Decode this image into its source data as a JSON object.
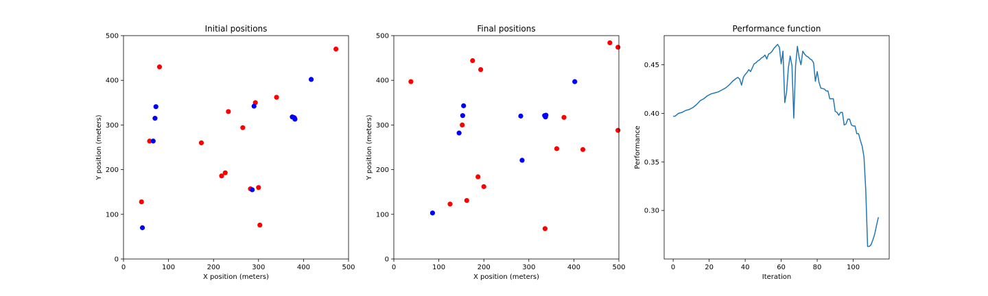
{
  "chart_data": [
    {
      "type": "scatter",
      "title": "Initial positions",
      "xlabel": "X position (meters)",
      "ylabel": "Y position (meters)",
      "xlim": [
        0,
        500
      ],
      "ylim": [
        0,
        500
      ],
      "xticks": [
        0,
        100,
        200,
        300,
        400,
        500
      ],
      "yticks": [
        0,
        100,
        200,
        300,
        400,
        500
      ],
      "grid": false,
      "series": [
        {
          "color": "#ff0000",
          "points": [
            [
              472,
              470
            ],
            [
              80,
              430
            ],
            [
              340,
              362
            ],
            [
              293,
              350
            ],
            [
              233,
              330
            ],
            [
              375,
              318
            ],
            [
              380,
              316
            ],
            [
              265,
              294
            ],
            [
              58,
              264
            ],
            [
              173,
              260
            ],
            [
              226,
              193
            ],
            [
              218,
              186
            ],
            [
              282,
              157
            ],
            [
              300,
              160
            ],
            [
              40,
              128
            ],
            [
              303,
              76
            ]
          ]
        },
        {
          "color": "#0000ff",
          "points": [
            [
              417,
              402
            ],
            [
              72,
              341
            ],
            [
              290,
              342
            ],
            [
              70,
              315
            ],
            [
              378,
              317
            ],
            [
              375,
              318
            ],
            [
              381,
              313
            ],
            [
              66,
              264
            ],
            [
              286,
              155
            ],
            [
              42,
              70
            ]
          ]
        }
      ]
    },
    {
      "type": "scatter",
      "title": "Final positions",
      "xlabel": "X position (meters)",
      "ylabel": "Y position (meters)",
      "xlim": [
        0,
        500
      ],
      "ylim": [
        0,
        500
      ],
      "xticks": [
        0,
        100,
        200,
        300,
        400,
        500
      ],
      "yticks": [
        0,
        100,
        200,
        300,
        400,
        500
      ],
      "grid": false,
      "series": [
        {
          "color": "#ff0000",
          "points": [
            [
              480,
              484
            ],
            [
              498,
              474
            ],
            [
              175,
              444
            ],
            [
              193,
              424
            ],
            [
              38,
              397
            ],
            [
              378,
              317
            ],
            [
              152,
              300
            ],
            [
              498,
              288
            ],
            [
              362,
              247
            ],
            [
              420,
              245
            ],
            [
              187,
              184
            ],
            [
              200,
              162
            ],
            [
              162,
              131
            ],
            [
              125,
              123
            ],
            [
              336,
              68
            ]
          ]
        },
        {
          "color": "#0000ff",
          "points": [
            [
              402,
              397
            ],
            [
              155,
              343
            ],
            [
              153,
              321
            ],
            [
              282,
              320
            ],
            [
              335,
              321
            ],
            [
              338,
              322
            ],
            [
              337,
              318
            ],
            [
              145,
              282
            ],
            [
              285,
              221
            ],
            [
              86,
              103
            ]
          ]
        }
      ]
    },
    {
      "type": "line",
      "title": "Performance function",
      "xlabel": "Iteration",
      "ylabel": "Performance",
      "xlim": [
        -5,
        120
      ],
      "ylim": [
        0.25,
        0.48
      ],
      "xticks": [
        0,
        20,
        40,
        60,
        80,
        100
      ],
      "yticks": [
        0.3,
        0.35,
        0.4,
        0.45
      ],
      "grid": false,
      "series": [
        {
          "color": "#1f77b4",
          "points": [
            [
              0,
              0.397
            ],
            [
              1,
              0.397
            ],
            [
              3,
              0.4
            ],
            [
              5,
              0.401
            ],
            [
              7,
              0.403
            ],
            [
              9,
              0.404
            ],
            [
              11,
              0.406
            ],
            [
              13,
              0.409
            ],
            [
              15,
              0.413
            ],
            [
              17,
              0.415
            ],
            [
              19,
              0.418
            ],
            [
              21,
              0.42
            ],
            [
              23,
              0.421
            ],
            [
              25,
              0.422
            ],
            [
              27,
              0.424
            ],
            [
              29,
              0.426
            ],
            [
              31,
              0.429
            ],
            [
              33,
              0.433
            ],
            [
              35,
              0.436
            ],
            [
              36,
              0.437
            ],
            [
              37,
              0.435
            ],
            [
              38,
              0.429
            ],
            [
              39,
              0.437
            ],
            [
              40,
              0.44
            ],
            [
              41,
              0.442
            ],
            [
              42,
              0.445
            ],
            [
              43,
              0.443
            ],
            [
              44,
              0.447
            ],
            [
              45,
              0.451
            ],
            [
              46,
              0.452
            ],
            [
              47,
              0.454
            ],
            [
              48,
              0.455
            ],
            [
              49,
              0.457
            ],
            [
              50,
              0.458
            ],
            [
              51,
              0.46
            ],
            [
              52,
              0.456
            ],
            [
              53,
              0.461
            ],
            [
              54,
              0.462
            ],
            [
              55,
              0.464
            ],
            [
              56,
              0.467
            ],
            [
              57,
              0.469
            ],
            [
              58,
              0.471
            ],
            [
              59,
              0.468
            ],
            [
              60,
              0.451
            ],
            [
              61,
              0.464
            ],
            [
              62,
              0.411
            ],
            [
              63,
              0.422
            ],
            [
              64,
              0.447
            ],
            [
              65,
              0.459
            ],
            [
              66,
              0.449
            ],
            [
              67,
              0.395
            ],
            [
              68,
              0.449
            ],
            [
              69,
              0.469
            ],
            [
              70,
              0.457
            ],
            [
              71,
              0.45
            ],
            [
              72,
              0.464
            ],
            [
              73,
              0.461
            ],
            [
              74,
              0.459
            ],
            [
              75,
              0.458
            ],
            [
              76,
              0.456
            ],
            [
              77,
              0.455
            ],
            [
              78,
              0.452
            ],
            [
              79,
              0.433
            ],
            [
              80,
              0.443
            ],
            [
              81,
              0.432
            ],
            [
              82,
              0.426
            ],
            [
              84,
              0.425
            ],
            [
              85,
              0.423
            ],
            [
              86,
              0.423
            ],
            [
              87,
              0.415
            ],
            [
              89,
              0.415
            ],
            [
              90,
              0.402
            ],
            [
              91,
              0.401
            ],
            [
              92,
              0.398
            ],
            [
              93,
              0.401
            ],
            [
              94,
              0.401
            ],
            [
              95,
              0.388
            ],
            [
              96,
              0.389
            ],
            [
              97,
              0.394
            ],
            [
              98,
              0.394
            ],
            [
              99,
              0.388
            ],
            [
              100,
              0.387
            ],
            [
              101,
              0.387
            ],
            [
              102,
              0.379
            ],
            [
              103,
              0.379
            ],
            [
              104,
              0.372
            ],
            [
              105,
              0.366
            ],
            [
              106,
              0.355
            ],
            [
              107,
              0.32
            ],
            [
              108,
              0.263
            ],
            [
              109,
              0.263
            ],
            [
              110,
              0.265
            ],
            [
              111,
              0.27
            ],
            [
              112,
              0.276
            ],
            [
              113,
              0.285
            ],
            [
              114,
              0.293
            ]
          ]
        }
      ]
    }
  ]
}
